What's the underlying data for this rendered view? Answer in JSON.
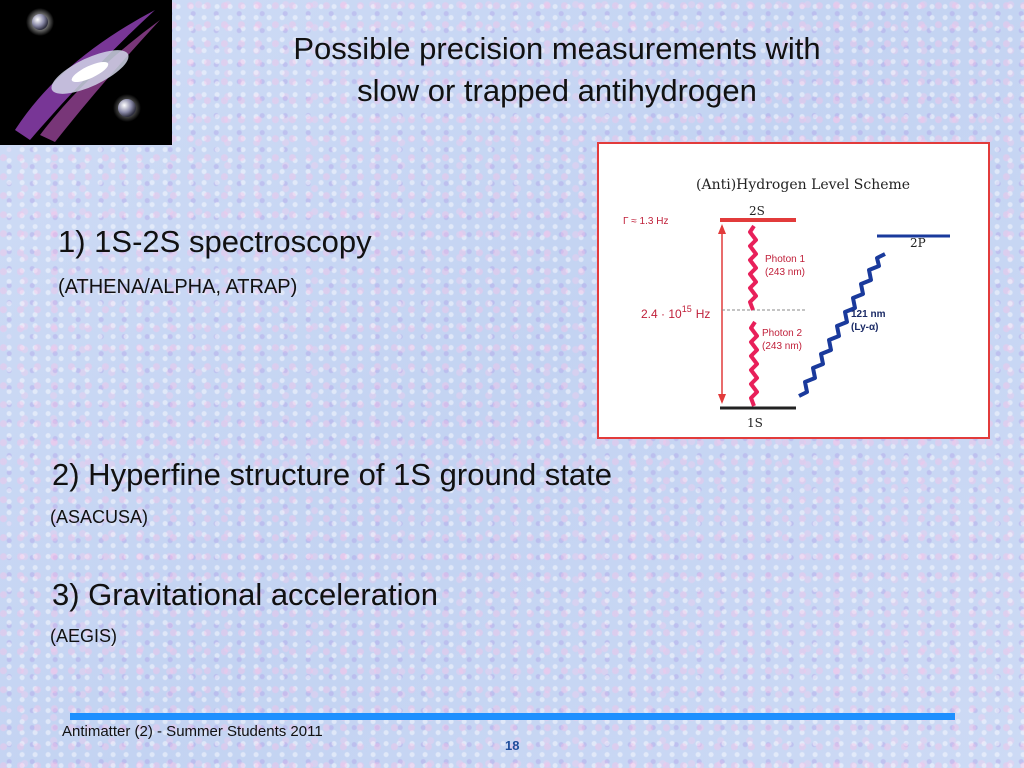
{
  "title": {
    "line1": "Possible precision measurements with",
    "line2": "slow or trapped antihydrogen"
  },
  "items": [
    {
      "heading": "1) 1S-2S spectroscopy",
      "sub": "(ATHENA/ALPHA,  ATRAP)"
    },
    {
      "heading": "2) Hyperfine structure of 1S ground state",
      "sub": "(ASACUSA)"
    },
    {
      "heading": "3) Gravitational acceleration",
      "sub": "(AEGIS)"
    }
  ],
  "diagram": {
    "title": "(Anti)Hydrogen Level Scheme",
    "level_2s": "2S",
    "level_2p": "2P",
    "level_1s": "1S",
    "linewidth": "Γ ≈ 1.3 Hz",
    "frequency_base": "2.4 · 10",
    "frequency_exp": "15",
    "frequency_unit": "Hz",
    "photon1_name": "Photon 1",
    "photon1_wl": "(243 nm)",
    "photon2_name": "Photon 2",
    "photon2_wl": "(243 nm)",
    "lya_wl": "121 nm",
    "lya_name": "(Ly-α)",
    "colors": {
      "photon": "#e8205a",
      "lyman": "#1a3a9c",
      "level_2s": "#e23b3b"
    }
  },
  "footer": {
    "text": "Antimatter (2) - Summer Students 2011",
    "page": "18"
  }
}
